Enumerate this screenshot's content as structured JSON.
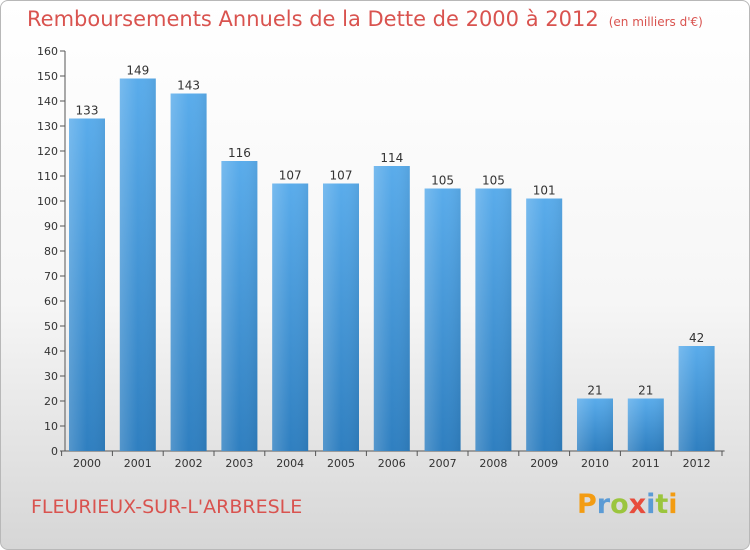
{
  "header": {
    "title": "Remboursements Annuels de la Dette de 2000 à 2012",
    "unit": "(en milliers d'€)"
  },
  "footer": {
    "commune": "FLEURIEUX-SUR-L'ARBRESLE",
    "logo_letters": [
      "P",
      "r",
      "o",
      "x",
      "i",
      "t",
      "i"
    ],
    "logo_colors": [
      "#f39c12",
      "#5b9bd5",
      "#9bc53d",
      "#e74c3c",
      "#5b9bd5",
      "#9bc53d",
      "#f39c12"
    ]
  },
  "chart_data": {
    "type": "bar",
    "categories": [
      "2000",
      "2001",
      "2002",
      "2003",
      "2004",
      "2005",
      "2006",
      "2007",
      "2008",
      "2009",
      "2010",
      "2011",
      "2012"
    ],
    "values": [
      133,
      149,
      143,
      116,
      107,
      107,
      114,
      105,
      105,
      101,
      21,
      21,
      42
    ],
    "title": "Remboursements Annuels de la Dette de 2000 à 2012",
    "xlabel": "",
    "ylabel": "",
    "ylim": [
      0,
      160
    ],
    "yticks": [
      0,
      10,
      20,
      30,
      40,
      50,
      60,
      70,
      80,
      90,
      100,
      110,
      120,
      130,
      140,
      150,
      160
    ],
    "grid": false,
    "bar_color_top": "#5aaceb",
    "bar_color_bottom": "#2f7fc0"
  }
}
